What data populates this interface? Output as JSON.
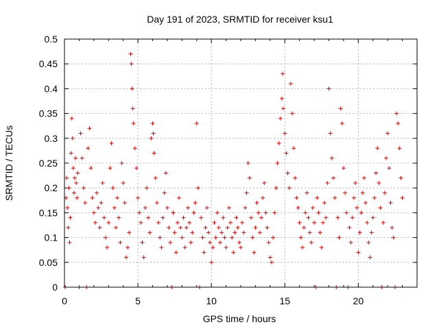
{
  "chart_data": {
    "type": "scatter",
    "title": "Day 191 of 2023, SRMTID for receiver ksu1",
    "xlabel": "GPS time / hours",
    "ylabel": "SRMTID / TECUs",
    "xlim": [
      0,
      24
    ],
    "ylim": [
      0,
      0.5
    ],
    "x_ticks": [
      0,
      5,
      10,
      15,
      20
    ],
    "x_tick_labels": [
      "0",
      "5",
      "10",
      "15",
      "20"
    ],
    "y_ticks": [
      0,
      0.05,
      0.1,
      0.15,
      0.2,
      0.25,
      0.3,
      0.35,
      0.4,
      0.45,
      0.5
    ],
    "y_tick_labels": [
      "0",
      "0.05",
      "0.1",
      "0.15",
      "0.2",
      "0.25",
      "0.3",
      "0.35",
      "0.4",
      "0.45",
      "0.5"
    ],
    "grid": true,
    "marker": "+",
    "color": "#dd0000",
    "series": [
      {
        "name": "SRMTID",
        "points": [
          [
            0.05,
            0.0
          ],
          [
            0.1,
            0.18
          ],
          [
            0.15,
            0.22
          ],
          [
            0.2,
            0.16
          ],
          [
            0.25,
            0.12
          ],
          [
            0.3,
            0.2
          ],
          [
            0.35,
            0.09
          ],
          [
            0.4,
            0.14
          ],
          [
            0.45,
            0.27
          ],
          [
            0.5,
            0.34
          ],
          [
            0.55,
            0.3
          ],
          [
            0.6,
            0.24
          ],
          [
            0.65,
            0.19
          ],
          [
            0.7,
            0.22
          ],
          [
            0.75,
            0.26
          ],
          [
            0.8,
            0.21
          ],
          [
            0.85,
            0.18
          ],
          [
            0.9,
            0.23
          ],
          [
            1.0,
            0.0
          ],
          [
            1.1,
            0.31
          ],
          [
            1.2,
            0.26
          ],
          [
            1.3,
            0.2
          ],
          [
            1.4,
            0.17
          ],
          [
            1.5,
            0.0
          ],
          [
            1.6,
            0.28
          ],
          [
            1.7,
            0.32
          ],
          [
            1.8,
            0.24
          ],
          [
            1.9,
            0.18
          ],
          [
            2.0,
            0.15
          ],
          [
            2.1,
            0.13
          ],
          [
            2.2,
            0.19
          ],
          [
            2.3,
            0.16
          ],
          [
            2.4,
            0.12
          ],
          [
            2.5,
            0.17
          ],
          [
            2.6,
            0.21
          ],
          [
            2.7,
            0.14
          ],
          [
            2.8,
            0.1
          ],
          [
            2.9,
            0.08
          ],
          [
            3.0,
            0.13
          ],
          [
            3.1,
            0.24
          ],
          [
            3.2,
            0.29
          ],
          [
            3.3,
            0.2
          ],
          [
            3.4,
            0.16
          ],
          [
            3.5,
            0.12
          ],
          [
            3.6,
            0.18
          ],
          [
            3.7,
            0.14
          ],
          [
            3.8,
            0.09
          ],
          [
            3.9,
            0.25
          ],
          [
            4.0,
            0.21
          ],
          [
            4.1,
            0.17
          ],
          [
            4.2,
            0.06
          ],
          [
            4.3,
            0.08
          ],
          [
            4.4,
            0.11
          ],
          [
            4.5,
            0.47
          ],
          [
            4.55,
            0.45
          ],
          [
            4.6,
            0.4
          ],
          [
            4.65,
            0.36
          ],
          [
            4.7,
            0.33
          ],
          [
            4.8,
            0.28
          ],
          [
            4.9,
            0.24
          ],
          [
            5.0,
            0.18
          ],
          [
            5.1,
            0.15
          ],
          [
            5.2,
            0.13
          ],
          [
            5.3,
            0.09
          ],
          [
            5.4,
            0.06
          ],
          [
            5.5,
            0.16
          ],
          [
            5.6,
            0.2
          ],
          [
            5.7,
            0.14
          ],
          [
            5.8,
            0.11
          ],
          [
            5.9,
            0.3
          ],
          [
            6.0,
            0.33
          ],
          [
            6.05,
            0.31
          ],
          [
            6.1,
            0.27
          ],
          [
            6.2,
            0.22
          ],
          [
            6.3,
            0.17
          ],
          [
            6.4,
            0.13
          ],
          [
            6.5,
            0.1
          ],
          [
            6.6,
            0.08
          ],
          [
            6.7,
            0.14
          ],
          [
            6.8,
            0.19
          ],
          [
            6.9,
            0.23
          ],
          [
            7.0,
            0.16
          ],
          [
            7.1,
            0.12
          ],
          [
            7.2,
            0.09
          ],
          [
            7.3,
            0.0
          ],
          [
            7.4,
            0.15
          ],
          [
            7.5,
            0.11
          ],
          [
            7.6,
            0.07
          ],
          [
            7.7,
            0.13
          ],
          [
            7.8,
            0.18
          ],
          [
            7.9,
            0.12
          ],
          [
            8.0,
            0.1
          ],
          [
            8.1,
            0.14
          ],
          [
            8.2,
            0.08
          ],
          [
            8.3,
            0.12
          ],
          [
            8.4,
            0.16
          ],
          [
            8.5,
            0.13
          ],
          [
            8.6,
            0.09
          ],
          [
            8.7,
            0.11
          ],
          [
            8.8,
            0.15
          ],
          [
            8.9,
            0.17
          ],
          [
            9.0,
            0.33
          ],
          [
            9.1,
            0.2
          ],
          [
            9.2,
            0.0
          ],
          [
            9.3,
            0.14
          ],
          [
            9.4,
            0.1
          ],
          [
            9.5,
            0.07
          ],
          [
            9.6,
            0.12
          ],
          [
            9.7,
            0.16
          ],
          [
            9.8,
            0.11
          ],
          [
            9.9,
            0.09
          ],
          [
            10.0,
            0.05
          ],
          [
            10.1,
            0.08
          ],
          [
            10.2,
            0.13
          ],
          [
            10.3,
            0.1
          ],
          [
            10.4,
            0.15
          ],
          [
            10.5,
            0.12
          ],
          [
            10.6,
            0.09
          ],
          [
            10.7,
            0.11
          ],
          [
            10.8,
            0.14
          ],
          [
            10.9,
            0.1
          ],
          [
            11.0,
            0.08
          ],
          [
            11.1,
            0.12
          ],
          [
            11.2,
            0.16
          ],
          [
            11.3,
            0.13
          ],
          [
            11.4,
            0.1
          ],
          [
            11.5,
            0.07
          ],
          [
            11.6,
            0.11
          ],
          [
            11.7,
            0.14
          ],
          [
            11.8,
            0.12
          ],
          [
            11.9,
            0.09
          ],
          [
            12.0,
            0.08
          ],
          [
            12.1,
            0.13
          ],
          [
            12.2,
            0.11
          ],
          [
            12.3,
            0.16
          ],
          [
            12.4,
            0.19
          ],
          [
            12.5,
            0.25
          ],
          [
            12.6,
            0.22
          ],
          [
            12.7,
            0.14
          ],
          [
            12.8,
            0.1
          ],
          [
            12.9,
            0.07
          ],
          [
            13.0,
            0.12
          ],
          [
            13.1,
            0.17
          ],
          [
            13.2,
            0.15
          ],
          [
            13.3,
            0.11
          ],
          [
            13.4,
            0.14
          ],
          [
            13.5,
            0.18
          ],
          [
            13.6,
            0.21
          ],
          [
            13.7,
            0.15
          ],
          [
            13.8,
            0.12
          ],
          [
            13.9,
            0.09
          ],
          [
            14.0,
            0.06
          ],
          [
            14.1,
            0.05
          ],
          [
            14.2,
            0.1
          ],
          [
            14.3,
            0.15
          ],
          [
            14.4,
            0.2
          ],
          [
            14.5,
            0.25
          ],
          [
            14.6,
            0.29
          ],
          [
            14.7,
            0.34
          ],
          [
            14.8,
            0.38
          ],
          [
            14.85,
            0.43
          ],
          [
            14.9,
            0.36
          ],
          [
            15.0,
            0.31
          ],
          [
            15.1,
            0.27
          ],
          [
            15.2,
            0.23
          ],
          [
            15.3,
            0.2
          ],
          [
            15.4,
            0.41
          ],
          [
            15.5,
            0.35
          ],
          [
            15.6,
            0.28
          ],
          [
            15.7,
            0.22
          ],
          [
            15.8,
            0.18
          ],
          [
            15.9,
            0.16
          ],
          [
            16.0,
            0.13
          ],
          [
            16.1,
            0.1
          ],
          [
            16.2,
            0.08
          ],
          [
            16.3,
            0.12
          ],
          [
            16.4,
            0.15
          ],
          [
            16.5,
            0.19
          ],
          [
            16.6,
            0.14
          ],
          [
            16.7,
            0.11
          ],
          [
            16.8,
            0.09
          ],
          [
            16.9,
            0.16
          ],
          [
            17.0,
            0.13
          ],
          [
            17.1,
            0.0
          ],
          [
            17.2,
            0.18
          ],
          [
            17.3,
            0.15
          ],
          [
            17.4,
            0.11
          ],
          [
            17.5,
            0.08
          ],
          [
            17.6,
            0.13
          ],
          [
            17.7,
            0.17
          ],
          [
            17.8,
            0.14
          ],
          [
            17.9,
            0.21
          ],
          [
            18.0,
            0.4
          ],
          [
            18.1,
            0.31
          ],
          [
            18.2,
            0.26
          ],
          [
            18.3,
            0.22
          ],
          [
            18.4,
            0.18
          ],
          [
            18.5,
            0.0
          ],
          [
            18.6,
            0.14
          ],
          [
            18.7,
            0.1
          ],
          [
            18.8,
            0.36
          ],
          [
            18.9,
            0.33
          ],
          [
            19.0,
            0.24
          ],
          [
            19.1,
            0.19
          ],
          [
            19.2,
            0.15
          ],
          [
            19.3,
            0.0
          ],
          [
            19.4,
            0.12
          ],
          [
            19.5,
            0.09
          ],
          [
            19.6,
            0.14
          ],
          [
            19.7,
            0.18
          ],
          [
            19.8,
            0.21
          ],
          [
            19.9,
            0.16
          ],
          [
            20.0,
            0.07
          ],
          [
            20.1,
            0.11
          ],
          [
            20.2,
            0.15
          ],
          [
            20.3,
            0.19
          ],
          [
            20.4,
            0.22
          ],
          [
            20.5,
            0.17
          ],
          [
            20.6,
            0.13
          ],
          [
            20.7,
            0.09
          ],
          [
            20.8,
            0.06
          ],
          [
            20.9,
            0.11
          ],
          [
            21.0,
            0.14
          ],
          [
            21.1,
            0.18
          ],
          [
            21.2,
            0.23
          ],
          [
            21.3,
            0.28
          ],
          [
            21.4,
            0.21
          ],
          [
            21.5,
            0.16
          ],
          [
            21.6,
            0.0
          ],
          [
            21.7,
            0.13
          ],
          [
            21.8,
            0.19
          ],
          [
            21.9,
            0.26
          ],
          [
            22.0,
            0.31
          ],
          [
            22.1,
            0.24
          ],
          [
            22.2,
            0.17
          ],
          [
            22.3,
            0.12
          ],
          [
            22.4,
            0.1
          ],
          [
            22.5,
            0.0
          ],
          [
            22.6,
            0.35
          ],
          [
            22.7,
            0.33
          ],
          [
            22.8,
            0.28
          ],
          [
            22.9,
            0.22
          ],
          [
            23.0,
            0.18
          ]
        ]
      }
    ]
  }
}
